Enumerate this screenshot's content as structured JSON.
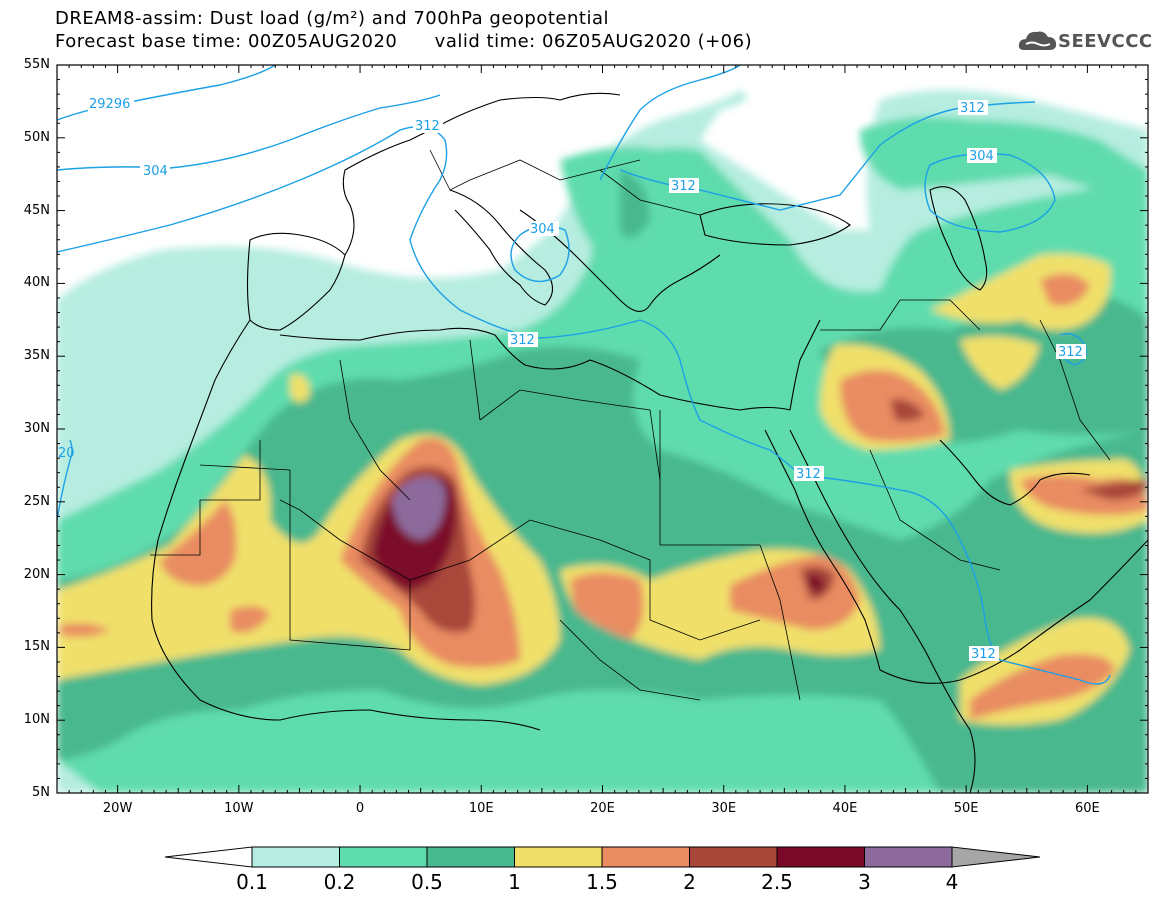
{
  "header": {
    "title_line1": "DREAM8-assim: Dust load (g/m²) and 700hPa geopotential",
    "title_line2": "Forecast base time: 00Z05AUG2020      valid time: 06Z05AUG2020 (+06)",
    "logo_text": "SEEVCCC"
  },
  "map": {
    "lon_range": [
      -25,
      65
    ],
    "lat_range": [
      5,
      55
    ],
    "lat_ticks": [
      "55N",
      "50N",
      "45N",
      "40N",
      "35N",
      "30N",
      "25N",
      "20N",
      "15N",
      "10N",
      "5N"
    ],
    "lon_ticks": [
      "20W",
      "10W",
      "0",
      "10E",
      "20E",
      "30E",
      "40E",
      "50E",
      "60E"
    ],
    "contour_labels": [
      "29296",
      "304",
      "312",
      "304",
      "312",
      "312",
      "304",
      "312",
      "312",
      "312",
      "312",
      "20"
    ],
    "contour_color": "#1ca0e6"
  },
  "colorbar": {
    "tick_labels": [
      "0.1",
      "0.2",
      "0.5",
      "1",
      "1.5",
      "2",
      "2.5",
      "3",
      "4"
    ],
    "colors": [
      "#b6ede0",
      "#5edcae",
      "#48b88e",
      "#f0e06a",
      "#e98c62",
      "#a9463a",
      "#7b0a2a",
      "#8c6a9c",
      "#a6a6a6"
    ],
    "under_color": "#ffffff"
  }
}
